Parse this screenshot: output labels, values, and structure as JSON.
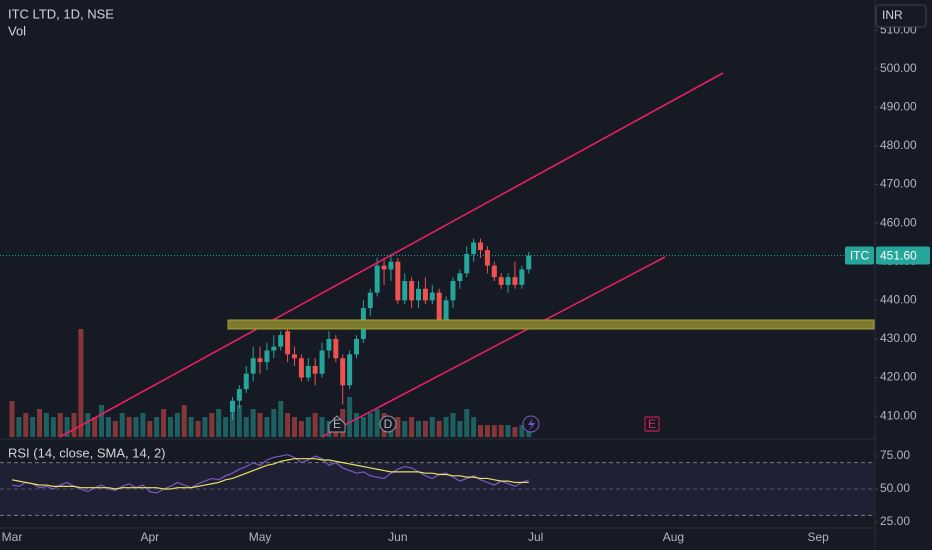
{
  "chart_data": [
    {
      "type": "candlestick",
      "title": "ITC LTD, 1D, NSE",
      "volume_label": "Vol",
      "currency": "INR",
      "ticker": "ITC",
      "categories": [
        "Mar",
        null,
        null,
        null,
        null,
        null,
        null,
        null,
        null,
        null,
        null,
        null,
        null,
        null,
        null,
        null,
        null,
        null,
        null,
        null,
        "Apr",
        null,
        null,
        null,
        null,
        null,
        null,
        null,
        null,
        null,
        null,
        null,
        null,
        null,
        null,
        null,
        "May",
        null,
        null,
        null,
        null,
        null,
        null,
        null,
        null,
        null,
        null,
        null,
        null,
        null,
        null,
        null,
        null,
        null,
        null,
        null,
        "Jun",
        null,
        null,
        null,
        null,
        null,
        null,
        null,
        null,
        null,
        null,
        null,
        null,
        null,
        null,
        null,
        null,
        null,
        null,
        null,
        "Jul",
        null,
        null,
        null,
        null,
        null,
        null,
        null,
        null,
        null,
        null,
        null,
        null,
        null,
        null,
        null,
        null,
        null,
        null,
        null,
        "Aug",
        null,
        null,
        null,
        null,
        null,
        null,
        null,
        null,
        null,
        null,
        null,
        null,
        null,
        null,
        null,
        null,
        null,
        null,
        null,
        null,
        "Sep",
        null,
        null,
        null,
        null,
        null,
        null,
        null
      ],
      "open": [
        null,
        null,
        null,
        null,
        null,
        null,
        null,
        null,
        null,
        null,
        null,
        null,
        null,
        null,
        null,
        null,
        null,
        null,
        null,
        null,
        null,
        null,
        null,
        null,
        null,
        null,
        null,
        null,
        null,
        null,
        null,
        null,
        411,
        414,
        417,
        421,
        425,
        424,
        427,
        428,
        432,
        426,
        425,
        420,
        423,
        421,
        427,
        430,
        425,
        418,
        426,
        430,
        438,
        442,
        449,
        448,
        450,
        440,
        445,
        440,
        443,
        440,
        442,
        435,
        440,
        445,
        447,
        452,
        455,
        453,
        449,
        446,
        444,
        446,
        444,
        448,
        null,
        null,
        null,
        null,
        null,
        null,
        null,
        null,
        null,
        null,
        null,
        null,
        null,
        null,
        null,
        null,
        null,
        null,
        null,
        null,
        null,
        null,
        null,
        null,
        null,
        null,
        null,
        null,
        null,
        null,
        null,
        null,
        null,
        null,
        null,
        null,
        null,
        null,
        null,
        null,
        null,
        null,
        null,
        null,
        null,
        null,
        null,
        null,
        null
      ],
      "high": [
        null,
        null,
        null,
        null,
        null,
        null,
        null,
        null,
        null,
        null,
        null,
        null,
        null,
        null,
        null,
        null,
        null,
        null,
        null,
        null,
        null,
        null,
        null,
        null,
        null,
        null,
        null,
        null,
        null,
        null,
        null,
        null,
        415,
        418,
        423,
        428,
        428,
        429,
        431,
        432,
        433,
        428,
        426,
        425,
        425,
        429,
        432,
        431,
        426,
        427,
        431,
        440,
        443,
        451,
        451,
        452,
        451,
        447,
        446,
        445,
        446,
        444,
        443,
        441,
        446,
        448,
        454,
        456,
        456,
        454,
        450,
        447,
        447,
        450,
        449,
        452.5,
        null,
        null,
        null,
        null,
        null,
        null,
        null,
        null,
        null,
        null,
        null,
        null,
        null,
        null,
        null,
        null,
        null,
        null,
        null,
        null,
        null,
        null,
        null,
        null,
        null,
        null,
        null,
        null,
        null,
        null,
        null,
        null,
        null,
        null,
        null,
        null,
        null,
        null,
        null,
        null,
        null,
        null,
        null,
        null,
        null,
        null,
        null,
        null,
        null
      ],
      "low": [
        null,
        null,
        null,
        null,
        null,
        null,
        null,
        null,
        null,
        null,
        null,
        null,
        null,
        null,
        null,
        null,
        null,
        null,
        null,
        null,
        null,
        null,
        null,
        null,
        null,
        null,
        null,
        null,
        null,
        null,
        null,
        null,
        409,
        412,
        416,
        419,
        421,
        422,
        425,
        427,
        424,
        423,
        419,
        419,
        418,
        420,
        425,
        424,
        413,
        417,
        425,
        429,
        436,
        441,
        444,
        445,
        439,
        439,
        438,
        438,
        439,
        439,
        434,
        434,
        438,
        443,
        446,
        450,
        451,
        447,
        445,
        443,
        442,
        443,
        443,
        447,
        null,
        null,
        null,
        null,
        null,
        null,
        null,
        null,
        null,
        null,
        null,
        null,
        null,
        null,
        null,
        null,
        null,
        null,
        null,
        null,
        null,
        null,
        null,
        null,
        null,
        null,
        null,
        null,
        null,
        null,
        null,
        null,
        null,
        null,
        null,
        null,
        null,
        null,
        null,
        null,
        null,
        null,
        null,
        null,
        null,
        null,
        null,
        null,
        null
      ],
      "close": [
        null,
        null,
        null,
        null,
        null,
        null,
        null,
        null,
        null,
        null,
        null,
        null,
        null,
        null,
        null,
        null,
        null,
        null,
        null,
        null,
        null,
        null,
        null,
        null,
        null,
        null,
        null,
        null,
        null,
        null,
        null,
        null,
        414,
        417,
        421,
        425,
        424,
        427,
        428,
        431,
        426,
        425,
        420,
        423,
        421,
        427,
        430,
        425,
        418,
        426,
        430,
        438,
        442,
        449,
        448,
        450,
        440,
        445,
        440,
        443,
        440,
        442,
        435,
        440,
        445,
        447,
        452,
        455,
        453,
        449,
        446,
        444,
        446,
        444,
        448,
        451.6,
        null,
        null,
        null,
        null,
        null,
        null,
        null,
        null,
        null,
        null,
        null,
        null,
        null,
        null,
        null,
        null,
        null,
        null,
        null,
        null,
        null,
        null,
        null,
        null,
        null,
        null,
        null,
        null,
        null,
        null,
        null,
        null,
        null,
        null,
        null,
        null,
        null,
        null,
        null,
        null,
        null,
        null,
        null,
        null,
        null,
        null,
        null,
        null,
        null
      ],
      "volume": [
        9,
        5,
        6,
        5,
        7,
        6,
        5,
        6,
        5,
        6,
        27,
        6,
        5,
        8,
        5,
        4,
        6,
        5,
        5,
        6,
        4,
        5,
        7,
        5,
        6,
        8,
        5,
        4,
        5,
        6,
        7,
        5,
        6,
        8,
        5,
        7,
        6,
        5,
        7,
        9,
        6,
        5,
        4,
        5,
        6,
        5,
        4,
        5,
        7,
        10,
        6,
        5,
        6,
        7,
        6,
        5,
        5,
        4,
        5,
        4,
        4,
        5,
        4,
        5,
        6,
        4,
        7,
        5,
        3,
        3,
        3,
        3,
        3,
        2.5,
        3,
        5,
        null,
        null,
        null,
        null,
        null,
        null,
        null,
        null,
        null,
        null,
        null,
        null,
        null,
        null,
        null,
        null,
        null,
        null,
        null,
        null,
        null,
        null,
        null,
        null,
        null,
        null,
        null,
        null,
        null,
        null,
        null,
        null,
        null,
        null,
        null,
        null,
        null,
        null,
        null,
        null,
        null,
        null,
        null,
        null,
        null,
        null,
        null,
        null,
        null
      ],
      "volume_up": [
        false,
        true,
        false,
        true,
        false,
        true,
        true,
        false,
        true,
        false,
        false,
        true,
        false,
        true,
        true,
        false,
        true,
        false,
        true,
        true,
        false,
        true,
        false,
        true,
        true,
        false,
        true,
        false,
        true,
        false,
        true,
        true,
        true,
        true,
        true,
        true,
        false,
        true,
        true,
        true,
        false,
        false,
        false,
        true,
        false,
        true,
        true,
        false,
        false,
        true,
        true,
        true,
        true,
        true,
        false,
        true,
        false,
        true,
        false,
        true,
        false,
        true,
        false,
        true,
        true,
        true,
        true,
        true,
        false,
        false,
        false,
        false,
        true,
        false,
        true,
        true,
        null,
        null,
        null,
        null,
        null,
        null,
        null,
        null,
        null,
        null,
        null,
        null,
        null,
        null,
        null,
        null,
        null,
        null,
        null,
        null,
        null,
        null,
        null,
        null,
        null,
        null,
        null,
        null,
        null,
        null,
        null,
        null,
        null,
        null,
        null,
        null,
        null,
        null,
        null,
        null,
        null,
        null,
        null,
        null,
        null,
        null,
        null,
        null,
        null
      ],
      "colors": {
        "up": "#26a69a",
        "down": "#ef5350"
      },
      "ylim": [
        404.6,
        517.8
      ],
      "yticks": [
        {
          "value": 410,
          "label": "410.00"
        },
        {
          "value": 420,
          "label": "420.00"
        },
        {
          "value": 430,
          "label": "430.00"
        },
        {
          "value": 440,
          "label": "440.00"
        },
        {
          "value": 450,
          "label": "450.00"
        },
        {
          "value": 460,
          "label": "460.00"
        },
        {
          "value": 470,
          "label": "470.00"
        },
        {
          "value": 480,
          "label": "480.00"
        },
        {
          "value": 490,
          "label": "490.00"
        },
        {
          "value": 500,
          "label": "500.00"
        },
        {
          "value": 510,
          "label": "510.00"
        }
      ],
      "last_price": {
        "value": 451.6,
        "label": "451.60"
      },
      "events": [
        {
          "label": "E"
        },
        {
          "label": "D"
        },
        {
          "label": "E"
        }
      ],
      "grid": false
    },
    {
      "type": "line",
      "title": "RSI (14, close, SMA, 14, 2)",
      "series": [
        {
          "color": "#7e57c2",
          "values": [
            53,
            52,
            55,
            54,
            51,
            52,
            50,
            53,
            55,
            52,
            50,
            48,
            51,
            53,
            50,
            49,
            52,
            54,
            51,
            53,
            48,
            47,
            50,
            52,
            55,
            53,
            51,
            54,
            56,
            58,
            57,
            60,
            62,
            65,
            67,
            70,
            68,
            72,
            74,
            75,
            76,
            74,
            70,
            72,
            75,
            73,
            68,
            70,
            66,
            64,
            62,
            63,
            60,
            59,
            58,
            62,
            65,
            67,
            66,
            63,
            60,
            58,
            61,
            62,
            59,
            56,
            58,
            60,
            57,
            55,
            53,
            56,
            54,
            52,
            55,
            57,
            null,
            null,
            null,
            null,
            null,
            null,
            null,
            null,
            null,
            null,
            null,
            null,
            null,
            null,
            null,
            null,
            null,
            null,
            null,
            null,
            null,
            null,
            null,
            null,
            null,
            null,
            null,
            null,
            null,
            null,
            null,
            null,
            null,
            null,
            null,
            null,
            null,
            null,
            null,
            null,
            null,
            null,
            null,
            null,
            null,
            null,
            null,
            null,
            null
          ]
        },
        {
          "color": "#e6e25e",
          "values": [
            57,
            56,
            55,
            54,
            53,
            53,
            52,
            52,
            52,
            52,
            51,
            51,
            51,
            51,
            51,
            50,
            51,
            51,
            51,
            51,
            51,
            51,
            50,
            50,
            51,
            51,
            51,
            52,
            53,
            54,
            55,
            57,
            58,
            60,
            62,
            64,
            66,
            68,
            69,
            71,
            72,
            73,
            73,
            73,
            73,
            72,
            72,
            71,
            70,
            69,
            68,
            67,
            66,
            65,
            64,
            63,
            63,
            63,
            63,
            63,
            62,
            62,
            61,
            61,
            60,
            60,
            59,
            59,
            58,
            58,
            57,
            56,
            56,
            55,
            55,
            55,
            null,
            null,
            null,
            null,
            null,
            null,
            null,
            null,
            null,
            null,
            null,
            null,
            null,
            null,
            null,
            null,
            null,
            null,
            null,
            null,
            null,
            null,
            null,
            null,
            null,
            null,
            null,
            null,
            null,
            null,
            null,
            null,
            null,
            null,
            null,
            null,
            null,
            null,
            null,
            null,
            null,
            null,
            null,
            null,
            null,
            null,
            null,
            null,
            null
          ]
        }
      ],
      "ylim": [
        21.2,
        86.4
      ],
      "yticks": [
        {
          "value": 25,
          "label": "25.00"
        },
        {
          "value": 50,
          "label": "50.00"
        },
        {
          "value": 75,
          "label": "75.00"
        }
      ],
      "band": [
        30,
        70
      ],
      "midline": 50
    }
  ]
}
